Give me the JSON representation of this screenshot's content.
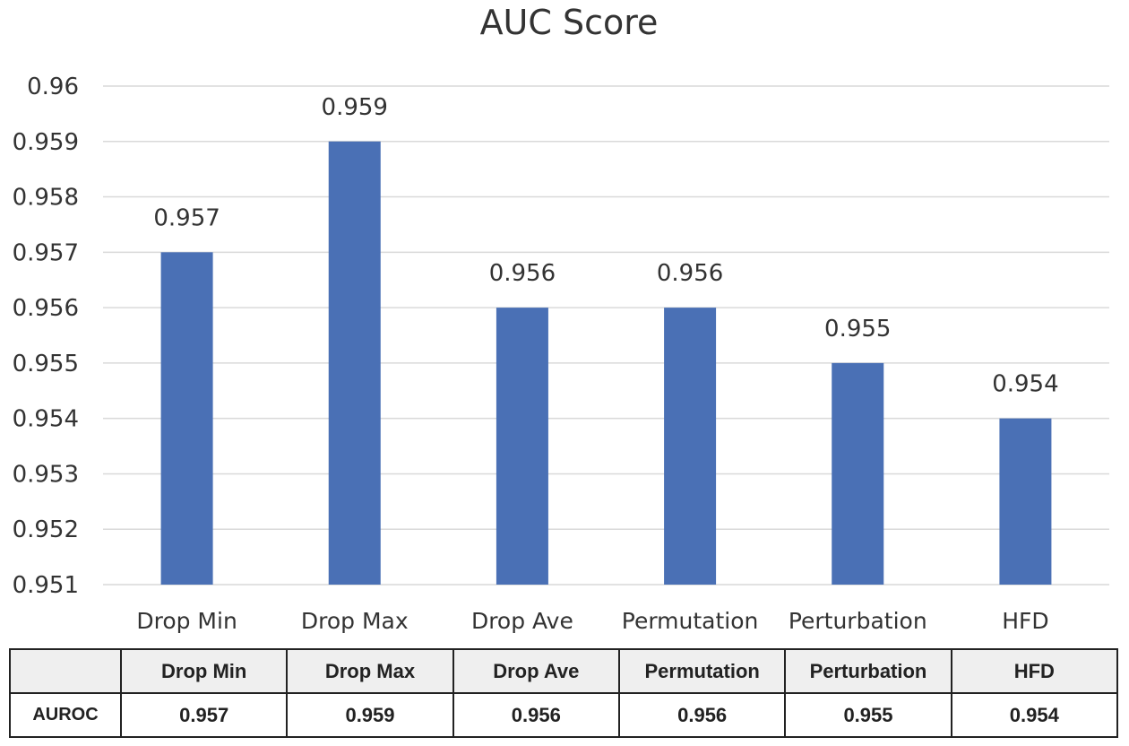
{
  "chart_data": {
    "type": "bar",
    "title": "AUC Score",
    "categories": [
      "Drop Min",
      "Drop Max",
      "Drop Ave",
      "Permutation",
      "Perturbation",
      "HFD"
    ],
    "values": [
      0.957,
      0.959,
      0.956,
      0.956,
      0.955,
      0.954
    ],
    "data_labels": [
      "0.957",
      "0.959",
      "0.956",
      "0.956",
      "0.955",
      "0.954"
    ],
    "ylim": [
      0.951,
      0.96
    ],
    "yticks": [
      "0.951",
      "0.952",
      "0.953",
      "0.954",
      "0.955",
      "0.956",
      "0.957",
      "0.958",
      "0.959",
      "0.96"
    ],
    "xlabel": "",
    "ylabel": "",
    "grid": true,
    "bar_color": "#4a70b5"
  },
  "table": {
    "corner": "",
    "headers": [
      "Drop Min",
      "Drop Max",
      "Drop Ave",
      "Permutation",
      "Perturbation",
      "HFD"
    ],
    "row_label": "AUROC",
    "values": [
      "0.957",
      "0.959",
      "0.956",
      "0.956",
      "0.955",
      "0.954"
    ]
  }
}
